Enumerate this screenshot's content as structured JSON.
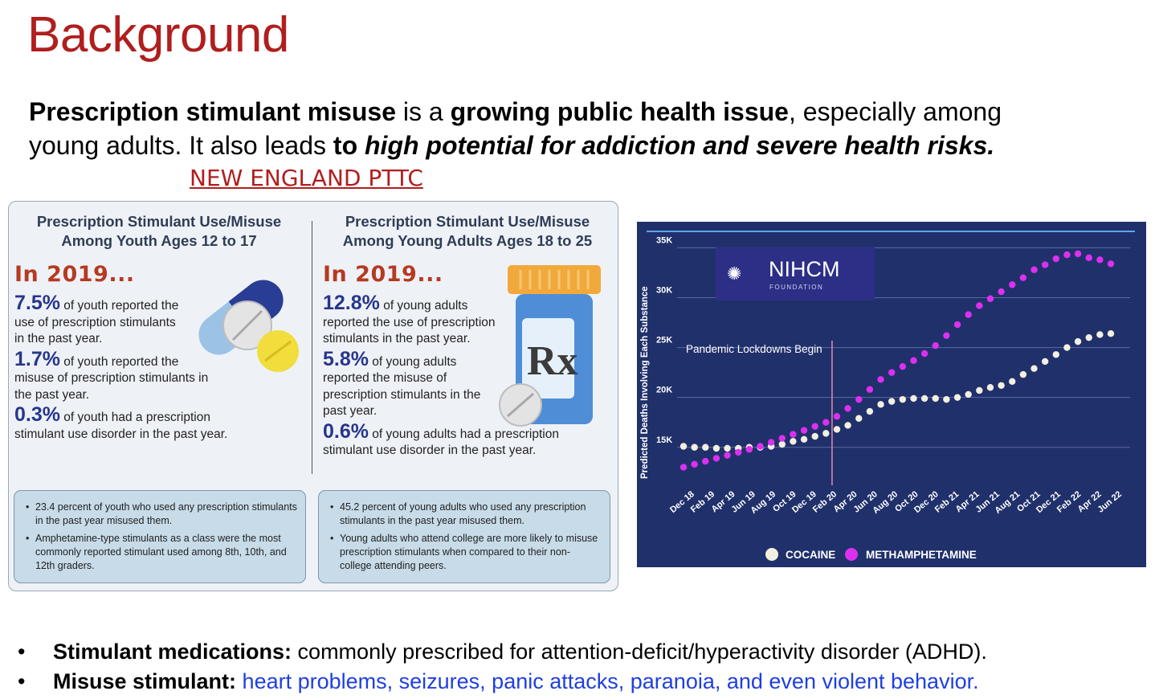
{
  "title": "Background",
  "intro": {
    "b1": "Prescription stimulant misuse",
    "t1": " is a ",
    "b2": "growing public health issue",
    "t2": ", especially among",
    "t3": "young adults. It also leads ",
    "b3": "to ",
    "bi1": "high potential for addiction and severe health risks."
  },
  "source_label": "NEW ENGLAND PTTC",
  "infographic": {
    "youth": {
      "heading": "Prescription Stimulant Use/Misuse Among Youth Ages 12 to 17",
      "year": "In 2019...",
      "stats": [
        {
          "pct": "7.5%",
          "text": " of youth reported the use of prescription stimulants in the past year."
        },
        {
          "pct": "1.7%",
          "text": " of youth reported the misuse of prescription stimulants in the past year."
        },
        {
          "pct": "0.3%",
          "text": " of youth had a prescription stimulant use disorder in the past year."
        }
      ],
      "notes": [
        "23.4 percent of youth who used any prescription stimulants in the past year misused them.",
        "Amphetamine-type stimulants as a class were the most commonly reported stimulant used among 8th, 10th, and 12th graders."
      ]
    },
    "adults": {
      "heading": "Prescription Stimulant Use/Misuse Among Young Adults Ages 18 to 25",
      "year": "In 2019...",
      "stats": [
        {
          "pct": "12.8%",
          "text": " of young adults reported the use of prescription stimulants in the past year."
        },
        {
          "pct": "5.8%",
          "text": " of young adults reported the misuse of prescription stimulants in the past year."
        },
        {
          "pct": "0.6%",
          "text": " of young adults had a prescription stimulant use disorder in the past year."
        }
      ],
      "notes": [
        "45.2 percent of young adults who used any prescription stimulants in the past year misused them.",
        "Young adults who attend college are more likely to misuse prescription stimulants when compared to their non-college attending peers."
      ]
    },
    "rx_symbol": "Rx",
    "pill_icon": "pill-capsule-icon",
    "bottle_icon": "rx-bottle-icon"
  },
  "chart_logo": {
    "name": "NIHCM",
    "sub": "FOUNDATION"
  },
  "chart_data": {
    "type": "scatter",
    "ylabel": "Predicted Deaths Involving Each Substance",
    "y_ticks": [
      "15K",
      "20K",
      "25K",
      "30K",
      "35K"
    ],
    "ylim": [
      12000,
      36000
    ],
    "x_ticks": [
      "Dec 18",
      "Feb 19",
      "Apr 19",
      "Jun 19",
      "Aug 19",
      "Oct 19",
      "Dec 19",
      "Feb 20",
      "Apr 20",
      "Jun 20",
      "Aug 20",
      "Oct 20",
      "Dec 20",
      "Feb 21",
      "Apr 21",
      "Jun 21",
      "Aug 21",
      "Oct 21",
      "Dec 21",
      "Feb 22",
      "Apr 22",
      "Jun 22"
    ],
    "annotation": {
      "text": "Pandemic Lockdowns Begin",
      "x_index": 7.3
    },
    "legend_position": "bottom",
    "colors": {
      "background": "#20306b",
      "cocaine": "#f3f0e0",
      "meth": "#dc30f0",
      "annotation_line": "#e58ab0",
      "top_rule": "#5fa5e8"
    },
    "series": [
      {
        "name": "COCAINE",
        "values": [
          15100,
          15000,
          15000,
          14900,
          14900,
          14900,
          15000,
          15000,
          15100,
          15300,
          15600,
          15800,
          16100,
          16400,
          16800,
          17200,
          17900,
          18600,
          19300,
          19600,
          19800,
          19900,
          19900,
          19900,
          19800,
          20000,
          20300,
          20700,
          21000,
          21200,
          21600,
          22300,
          22900,
          23600,
          24300,
          25000,
          25600,
          26000,
          26300,
          26400
        ]
      },
      {
        "name": "METHAMPHETAMINE",
        "values": [
          13000,
          13300,
          13600,
          13900,
          14200,
          14500,
          14800,
          15100,
          15500,
          15900,
          16300,
          16700,
          17100,
          17500,
          18100,
          18900,
          19800,
          20800,
          21800,
          22500,
          23100,
          23700,
          24400,
          25200,
          26200,
          27300,
          28300,
          29200,
          29900,
          30600,
          31300,
          32000,
          32800,
          33300,
          33900,
          34300,
          34400,
          34000,
          33800,
          33400
        ]
      }
    ]
  },
  "bullets": [
    {
      "bold": "Stimulant medications:",
      "text": " commonly prescribed for attention-deficit/hyperactivity disorder (ADHD)."
    },
    {
      "bold": "Misuse stimulant:",
      "text": " heart problems, seizures, panic attacks, paranoia, and even violent behavior."
    }
  ],
  "bullet_symbol": "•"
}
